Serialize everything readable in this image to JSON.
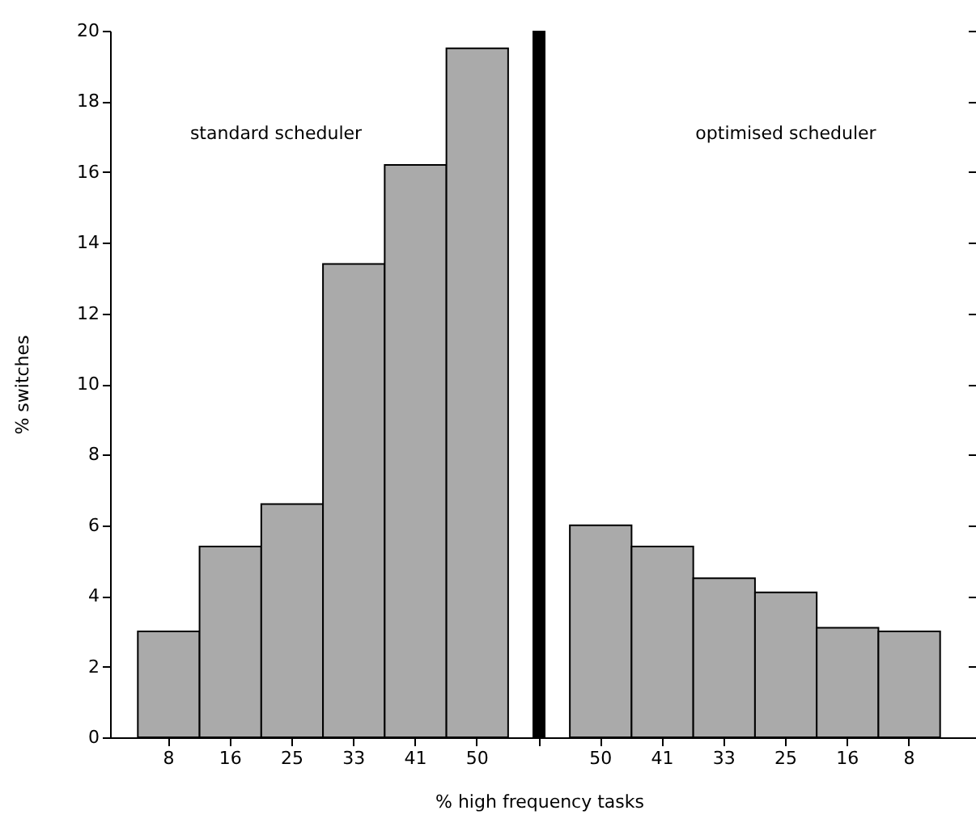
{
  "chart_data": {
    "type": "bar",
    "categories": [
      "8",
      "16",
      "25",
      "33",
      "41",
      "50",
      null,
      "50",
      "41",
      "33",
      "25",
      "16",
      "8"
    ],
    "values": [
      3.0,
      5.4,
      6.6,
      13.4,
      16.2,
      19.5,
      null,
      6.0,
      5.4,
      4.5,
      4.1,
      3.1,
      3.0
    ],
    "color": "#aaaaaa",
    "ylim": [
      0,
      20
    ],
    "yticks": [
      0,
      2,
      4,
      6,
      8,
      10,
      12,
      14,
      16,
      18,
      20
    ],
    "xlabel": "% high frequency tasks",
    "ylabel": "% switches",
    "annotations": [
      "standard scheduler",
      "optimised scheduler"
    ]
  }
}
